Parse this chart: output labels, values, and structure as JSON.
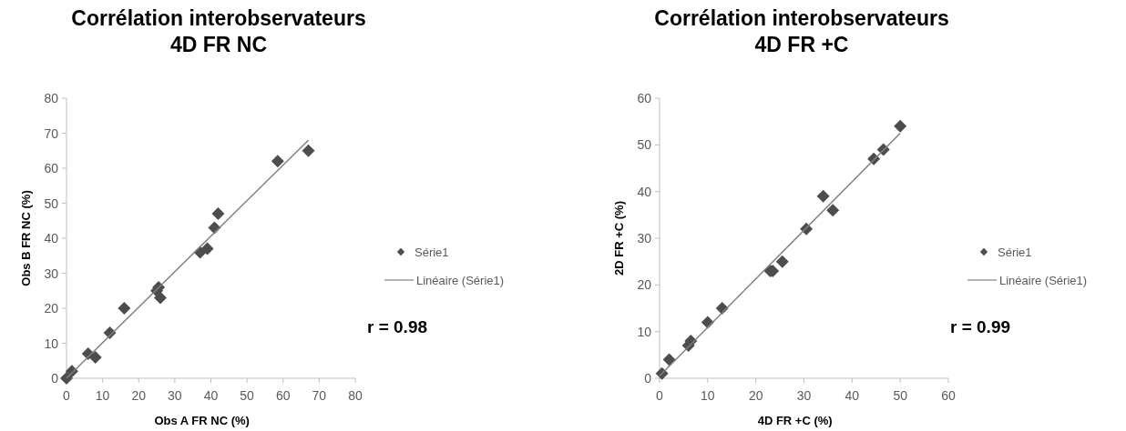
{
  "chart_data": [
    {
      "type": "scatter",
      "title": "Corrélation interobservateurs\n4D FR NC",
      "xlabel": "Obs A FR NC (%)",
      "ylabel": "Obs B FR NC (%)",
      "xlim": [
        0,
        80
      ],
      "ylim": [
        0,
        80
      ],
      "xticks": [
        0,
        10,
        20,
        30,
        40,
        50,
        60,
        70,
        80
      ],
      "yticks": [
        0,
        10,
        20,
        30,
        40,
        50,
        60,
        70,
        80
      ],
      "grid": false,
      "legend": "right",
      "annotations": [
        "r = 0.98"
      ],
      "series": [
        {
          "name": "Série1",
          "marker": "diamond",
          "color": "#4d4d4d",
          "x": [
            0,
            1.5,
            6,
            8,
            12,
            16,
            25,
            25.5,
            26,
            37,
            39,
            41,
            42,
            58.5,
            67
          ],
          "values": [
            0,
            2,
            7,
            6,
            13,
            20,
            25,
            26,
            23,
            36,
            37,
            43,
            47,
            62,
            65
          ]
        },
        {
          "name": "Linéaire (Série1)",
          "type": "line",
          "marker": "none",
          "line_style": "solid",
          "color": "#808080",
          "x": [
            0,
            67
          ],
          "values": [
            0,
            68
          ]
        }
      ]
    },
    {
      "type": "scatter",
      "title": "Corrélation interobservateurs\n4D FR +C",
      "xlabel": "4D FR +C (%)",
      "ylabel": "2D FR +C (%)",
      "xlim": [
        0,
        60
      ],
      "ylim": [
        0,
        60
      ],
      "xticks": [
        0,
        10,
        20,
        30,
        40,
        50,
        60
      ],
      "yticks": [
        0,
        10,
        20,
        30,
        40,
        50,
        60
      ],
      "grid": false,
      "legend": "right",
      "annotations": [
        "r = 0.99"
      ],
      "series": [
        {
          "name": "Série1",
          "marker": "diamond",
          "color": "#4d4d4d",
          "x": [
            0.5,
            2,
            6,
            6.5,
            10,
            13,
            23,
            23.5,
            25.5,
            30.5,
            34,
            36,
            44.5,
            46.5,
            50
          ],
          "values": [
            1,
            4,
            7,
            8,
            12,
            15,
            23,
            23,
            25,
            32,
            39,
            36,
            47,
            49,
            54
          ]
        },
        {
          "name": "Linéaire (Série1)",
          "type": "line",
          "marker": "none",
          "line_style": "solid",
          "color": "#808080",
          "x": [
            0,
            50
          ],
          "values": [
            0.5,
            52.5
          ]
        }
      ]
    }
  ]
}
